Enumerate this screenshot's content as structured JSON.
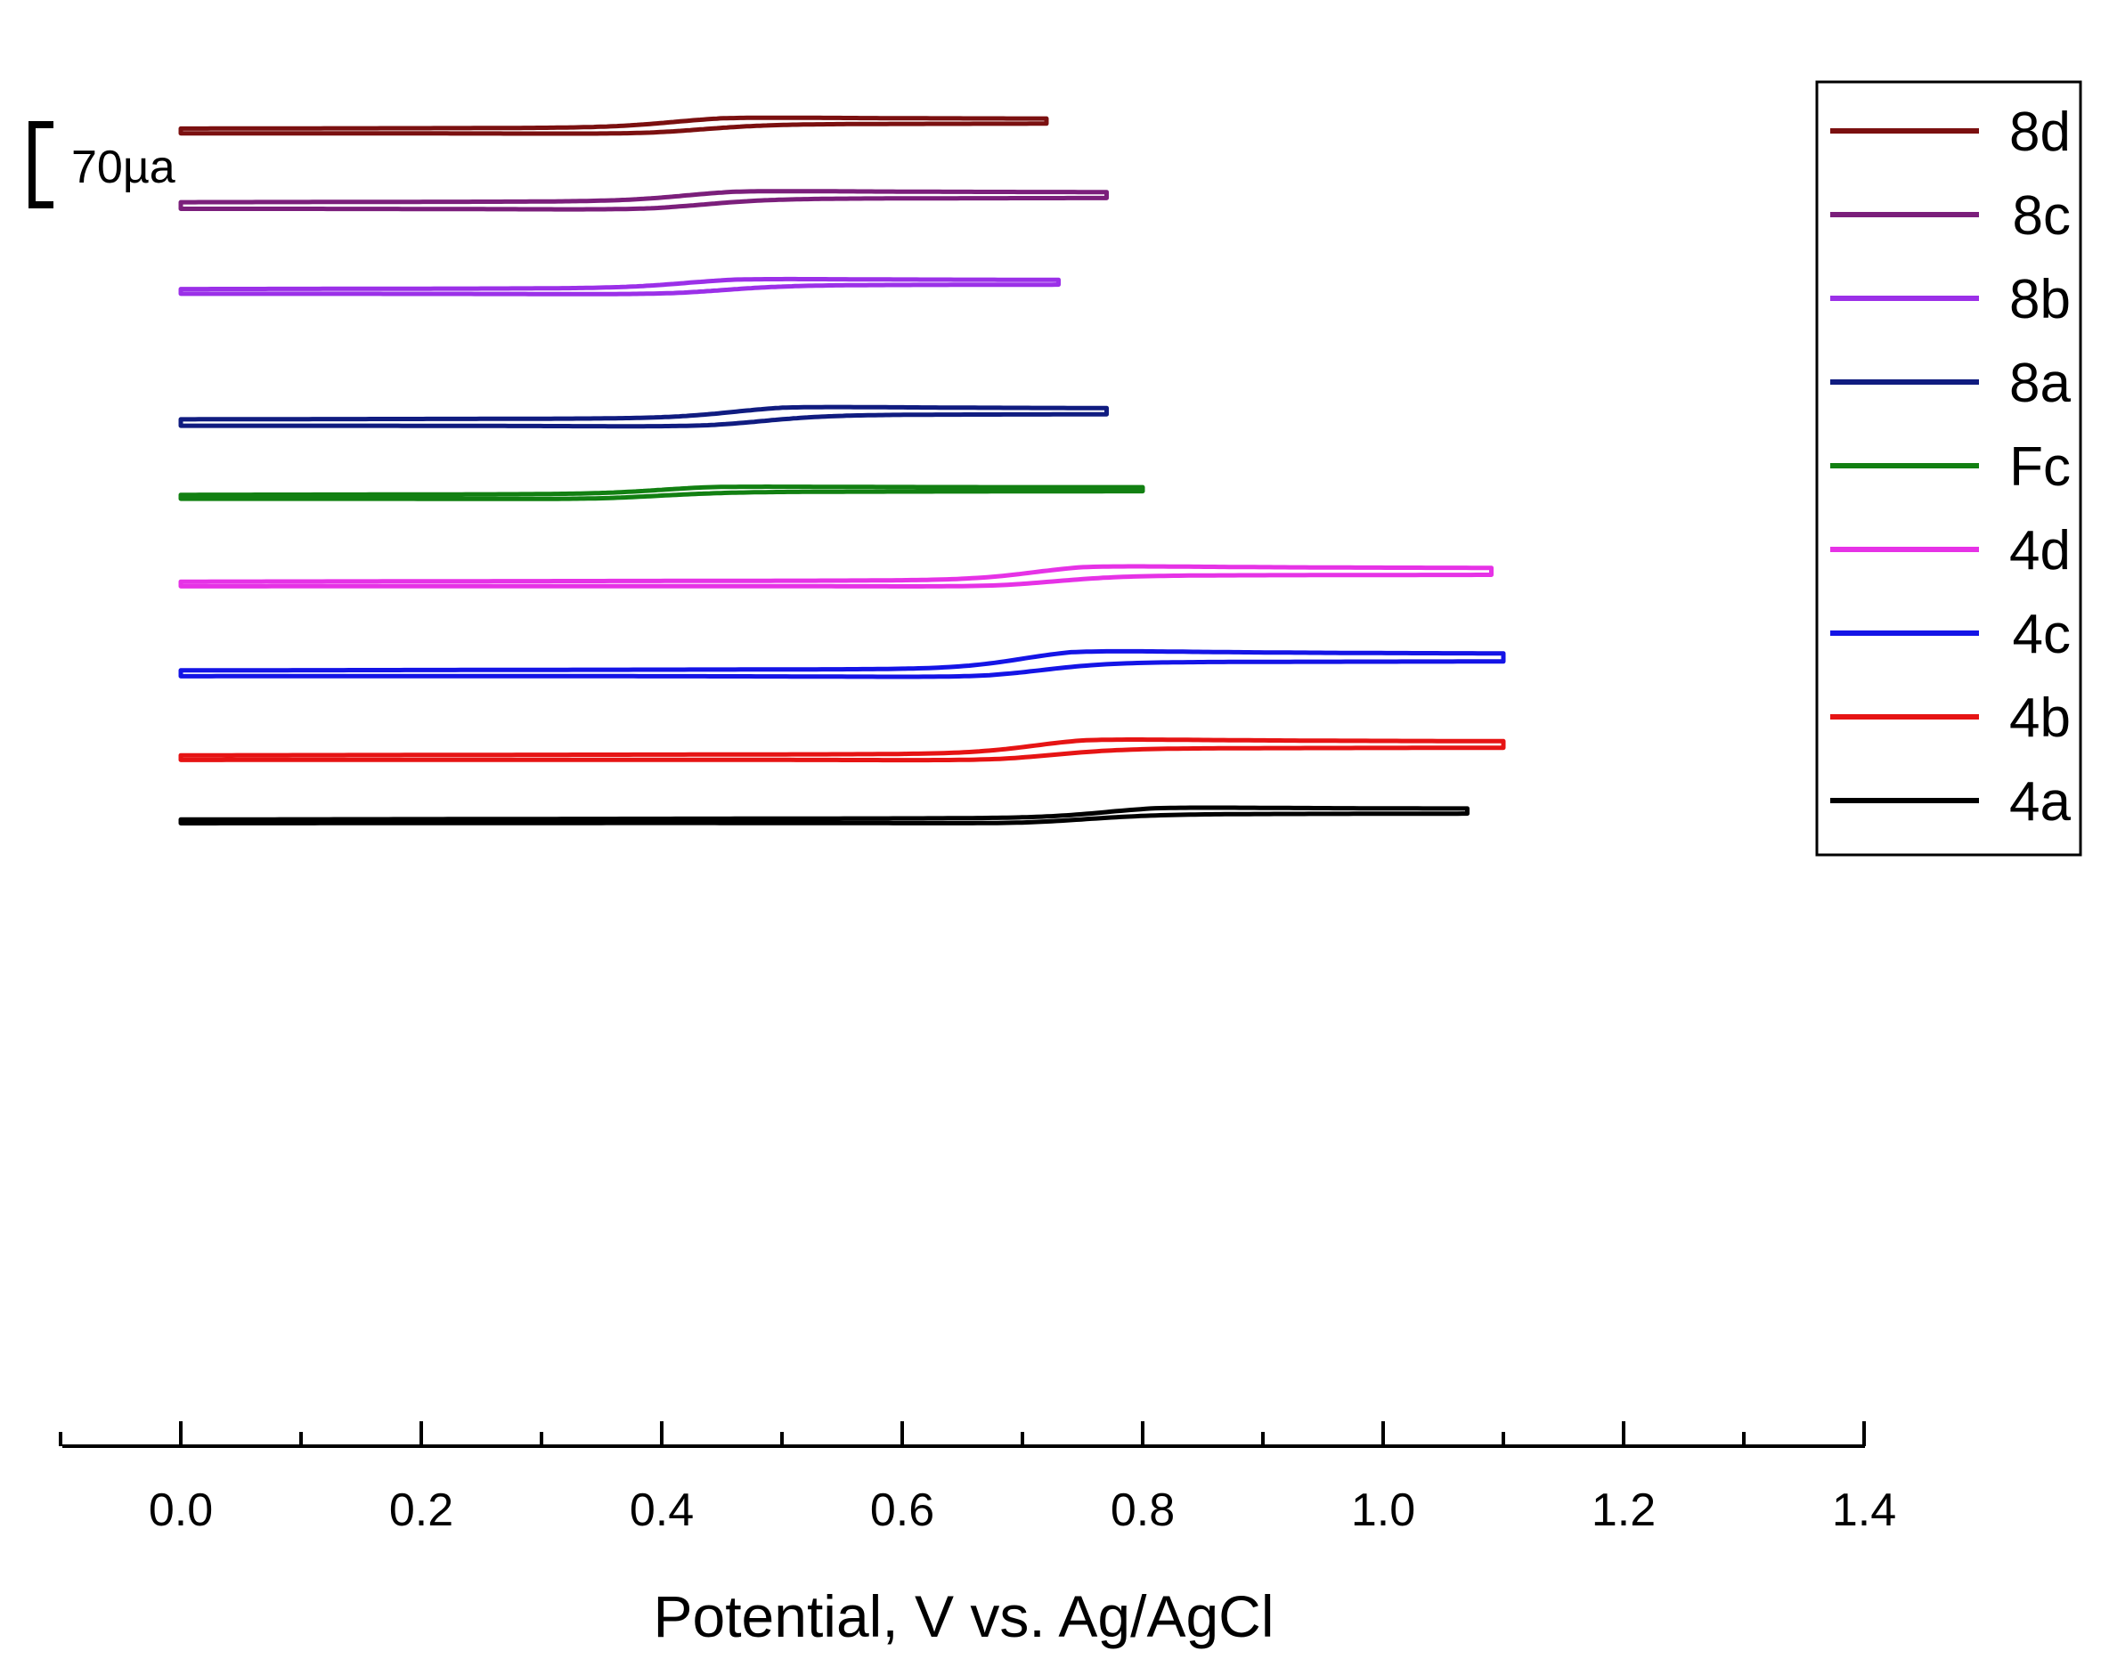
{
  "chart_data": {
    "type": "line",
    "title": "",
    "xlabel": "Potential, V vs. Ag/AgCl",
    "ylabel": "",
    "xlim": [
      -0.1,
      1.4
    ],
    "xticks": [
      "0.0",
      "0.2",
      "0.4",
      "0.6",
      "0.8",
      "1.0",
      "1.2",
      "1.4"
    ],
    "scale_bar_label": "70µa",
    "legend_position": "top-right",
    "series": [
      {
        "name": "8d",
        "color": "#7b1010",
        "baseline": 65.5,
        "E_start": 0.0,
        "E_switch": 0.72,
        "E_pa": 0.45,
        "E_pc": 0.39,
        "ipa": 0.62,
        "ipc": 0.33,
        "offset": 0.02
      },
      {
        "name": "8c",
        "color": "#7b1f7b",
        "baseline": 61.6,
        "E_start": 0.0,
        "E_switch": 0.77,
        "E_pa": 0.46,
        "E_pc": 0.39,
        "ipa": 0.63,
        "ipc": 0.4,
        "offset": 0.07
      },
      {
        "name": "8b",
        "color": "#9b30e8",
        "baseline": 57.0,
        "E_start": 0.0,
        "E_switch": 0.73,
        "E_pa": 0.46,
        "E_pc": 0.41,
        "ipa": 0.56,
        "ipc": 0.32,
        "offset": 0.03
      },
      {
        "name": "8a",
        "color": "#101c80",
        "baseline": 50.1,
        "E_start": 0.0,
        "E_switch": 0.77,
        "E_pa": 0.5,
        "E_pc": 0.44,
        "ipa": 0.7,
        "ipc": 0.42,
        "offset": 0.05
      },
      {
        "name": "Fc",
        "color": "#128012",
        "baseline": 46.1,
        "E_start": 0.0,
        "E_switch": 0.8,
        "E_pa": 0.44,
        "E_pc": 0.35,
        "ipa": 0.45,
        "ipc": 0.24,
        "offset": 0.04
      },
      {
        "name": "4d",
        "color": "#e632e6",
        "baseline": 41.5,
        "E_start": 0.0,
        "E_switch": 1.09,
        "E_pa": 0.75,
        "E_pc": 0.68,
        "ipa": 0.86,
        "ipc": 0.32,
        "offset": 0.04
      },
      {
        "name": "4c",
        "color": "#1414e6",
        "baseline": 36.8,
        "E_start": 0.0,
        "E_switch": 1.1,
        "E_pa": 0.74,
        "E_pc": 0.67,
        "ipa": 1.1,
        "ipc": 0.46,
        "offset": 0.01
      },
      {
        "name": "4b",
        "color": "#e61414",
        "baseline": 32.3,
        "E_start": 0.0,
        "E_switch": 1.1,
        "E_pa": 0.75,
        "E_pc": 0.68,
        "ipa": 0.89,
        "ipc": 0.36,
        "offset": 0.01
      },
      {
        "name": "4a",
        "color": "#000000",
        "baseline": 28.9,
        "E_start": 0.0,
        "E_switch": 1.07,
        "E_pa": 0.81,
        "E_pc": 0.7,
        "ipa": 0.64,
        "ipc": 0.29,
        "offset": 0.01
      }
    ],
    "units_note": "baseline / ipa / ipc / offset in units of the 70 µa scale bar"
  }
}
